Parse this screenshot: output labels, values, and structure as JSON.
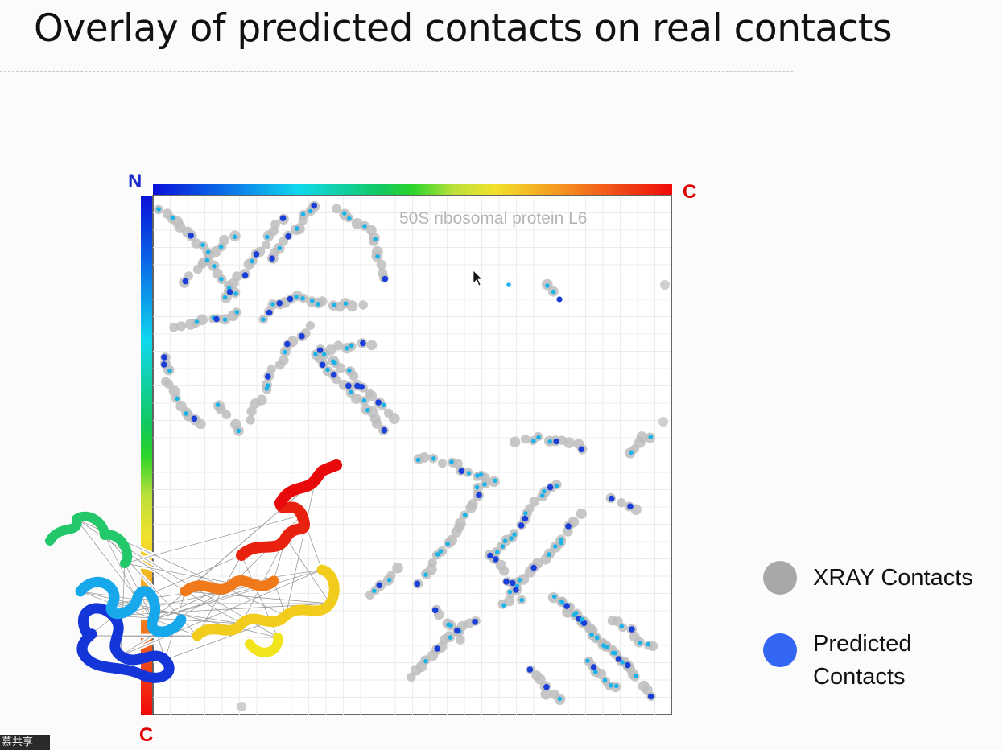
{
  "slide": {
    "title": "Overlay of predicted contacts on real contacts",
    "corner_badge": "慕共享"
  },
  "figure": {
    "plot_label": "50S ribosomal protein L6",
    "axis_top_start": "N",
    "axis_top_end": "C",
    "axis_left_end": "C",
    "colors": {
      "xray": "#a5a5a5",
      "predicted_light": "#19b3ea",
      "predicted_dark": "#1a3fd9",
      "axis_label_n": "#1b2ccf",
      "axis_label_c": "#e00000"
    }
  },
  "legend": {
    "items": [
      {
        "label": "XRAY Contacts",
        "color": "#a8a8a8"
      },
      {
        "label": "Predicted Contacts",
        "color": "#3366f2"
      }
    ]
  },
  "chart_data": {
    "type": "scatter",
    "title": "50S ribosomal protein L6",
    "xlabel": "",
    "ylabel": "",
    "grid": true,
    "series": [
      {
        "name": "XRAY Contacts"
      },
      {
        "name": "Predicted Contacts"
      }
    ],
    "structure_image": "protein-ribbon-structure"
  }
}
